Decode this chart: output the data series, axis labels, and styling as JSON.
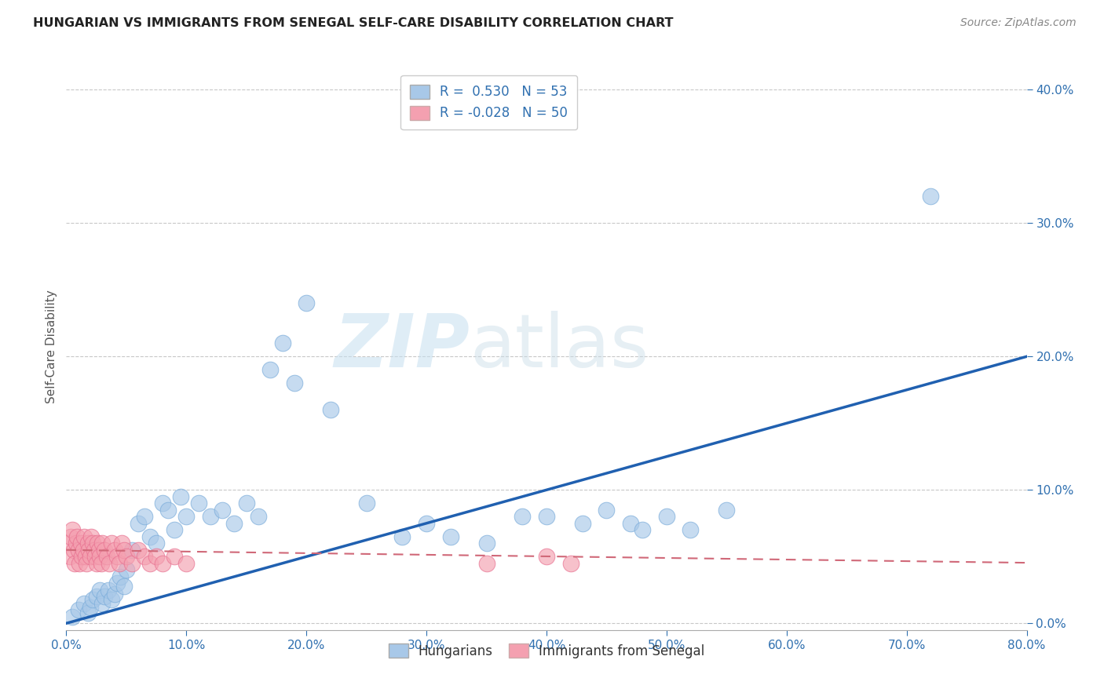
{
  "title": "HUNGARIAN VS IMMIGRANTS FROM SENEGAL SELF-CARE DISABILITY CORRELATION CHART",
  "source": "Source: ZipAtlas.com",
  "ylabel": "Self-Care Disability",
  "xlim": [
    0.0,
    0.8
  ],
  "ylim": [
    -0.005,
    0.42
  ],
  "xticks": [
    0.0,
    0.1,
    0.2,
    0.3,
    0.4,
    0.5,
    0.6,
    0.7,
    0.8
  ],
  "xtick_labels": [
    "0.0%",
    "10.0%",
    "20.0%",
    "30.0%",
    "40.0%",
    "50.0%",
    "60.0%",
    "70.0%",
    "80.0%"
  ],
  "yticks_right": [
    0.0,
    0.1,
    0.2,
    0.3,
    0.4
  ],
  "ytick_labels_right": [
    "0.0%",
    "10.0%",
    "20.0%",
    "30.0%",
    "40.0%"
  ],
  "blue_color": "#a8c8e8",
  "pink_color": "#f4a0b0",
  "blue_edge_color": "#7aacda",
  "pink_edge_color": "#e87090",
  "blue_line_color": "#2060b0",
  "pink_line_color": "#d06878",
  "R_blue": 0.53,
  "N_blue": 53,
  "R_pink": -0.028,
  "N_pink": 50,
  "watermark_zip": "ZIP",
  "watermark_atlas": "atlas",
  "legend_label_blue": "Hungarians",
  "legend_label_pink": "Immigrants from Senegal",
  "blue_x": [
    0.005,
    0.01,
    0.015,
    0.018,
    0.02,
    0.022,
    0.025,
    0.028,
    0.03,
    0.032,
    0.035,
    0.038,
    0.04,
    0.042,
    0.045,
    0.048,
    0.05,
    0.055,
    0.06,
    0.065,
    0.07,
    0.075,
    0.08,
    0.085,
    0.09,
    0.095,
    0.1,
    0.11,
    0.12,
    0.13,
    0.14,
    0.15,
    0.16,
    0.17,
    0.18,
    0.19,
    0.2,
    0.22,
    0.25,
    0.28,
    0.3,
    0.32,
    0.35,
    0.38,
    0.4,
    0.43,
    0.45,
    0.47,
    0.48,
    0.5,
    0.52,
    0.55,
    0.72
  ],
  "blue_y": [
    0.005,
    0.01,
    0.015,
    0.008,
    0.012,
    0.018,
    0.02,
    0.025,
    0.015,
    0.02,
    0.025,
    0.018,
    0.022,
    0.03,
    0.035,
    0.028,
    0.04,
    0.055,
    0.075,
    0.08,
    0.065,
    0.06,
    0.09,
    0.085,
    0.07,
    0.095,
    0.08,
    0.09,
    0.08,
    0.085,
    0.075,
    0.09,
    0.08,
    0.19,
    0.21,
    0.18,
    0.24,
    0.16,
    0.09,
    0.065,
    0.075,
    0.065,
    0.06,
    0.08,
    0.08,
    0.075,
    0.085,
    0.075,
    0.07,
    0.08,
    0.07,
    0.085,
    0.32
  ],
  "pink_x": [
    0.002,
    0.003,
    0.004,
    0.005,
    0.006,
    0.007,
    0.008,
    0.009,
    0.01,
    0.011,
    0.012,
    0.013,
    0.014,
    0.015,
    0.016,
    0.017,
    0.018,
    0.019,
    0.02,
    0.021,
    0.022,
    0.023,
    0.024,
    0.025,
    0.026,
    0.027,
    0.028,
    0.029,
    0.03,
    0.032,
    0.034,
    0.036,
    0.038,
    0.04,
    0.042,
    0.044,
    0.046,
    0.048,
    0.05,
    0.055,
    0.06,
    0.065,
    0.07,
    0.075,
    0.08,
    0.09,
    0.1,
    0.35,
    0.4,
    0.42
  ],
  "pink_y": [
    0.06,
    0.05,
    0.065,
    0.07,
    0.055,
    0.045,
    0.06,
    0.065,
    0.055,
    0.045,
    0.06,
    0.05,
    0.055,
    0.065,
    0.05,
    0.045,
    0.06,
    0.055,
    0.05,
    0.065,
    0.06,
    0.055,
    0.05,
    0.045,
    0.06,
    0.055,
    0.05,
    0.045,
    0.06,
    0.055,
    0.05,
    0.045,
    0.06,
    0.055,
    0.05,
    0.045,
    0.06,
    0.055,
    0.05,
    0.045,
    0.055,
    0.05,
    0.045,
    0.05,
    0.045,
    0.05,
    0.045,
    0.045,
    0.05,
    0.045
  ],
  "background_color": "#ffffff",
  "grid_color": "#c8c8c8"
}
